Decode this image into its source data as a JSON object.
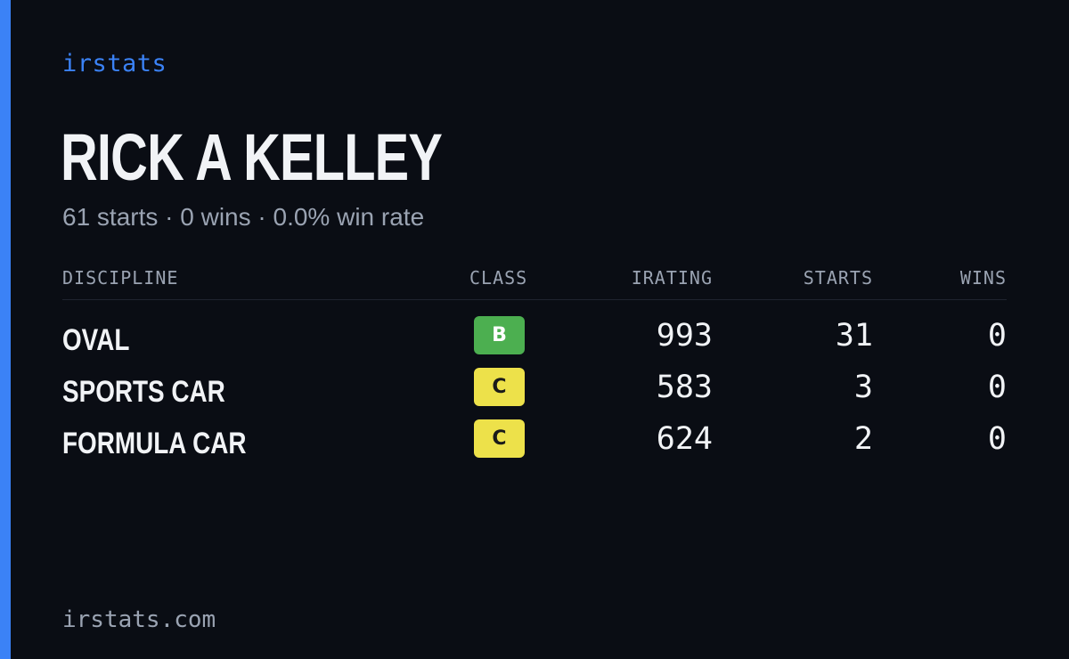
{
  "brand": "irstats",
  "driver": {
    "name": "RICK A KELLEY",
    "summary": "61 starts · 0 wins · 0.0% win rate"
  },
  "table": {
    "headers": {
      "discipline": "DISCIPLINE",
      "class": "CLASS",
      "irating": "IRATING",
      "starts": "STARTS",
      "wins": "WINS"
    },
    "rows": [
      {
        "discipline": "OVAL",
        "class": "B",
        "class_color": "#4caf50",
        "class_text_color": "#ffffff",
        "irating": "993",
        "starts": "31",
        "wins": "0"
      },
      {
        "discipline": "SPORTS CAR",
        "class": "C",
        "class_color": "#ede14a",
        "class_text_color": "#1a1a1a",
        "irating": "583",
        "starts": "3",
        "wins": "0"
      },
      {
        "discipline": "FORMULA CAR",
        "class": "C",
        "class_color": "#ede14a",
        "class_text_color": "#1a1a1a",
        "irating": "624",
        "starts": "2",
        "wins": "0"
      }
    ]
  },
  "footer": "irstats.com",
  "colors": {
    "accent": "#3b82f6",
    "background": "#0a0d14",
    "text_primary": "#f1f3f6",
    "text_muted": "#9aa3b2"
  }
}
